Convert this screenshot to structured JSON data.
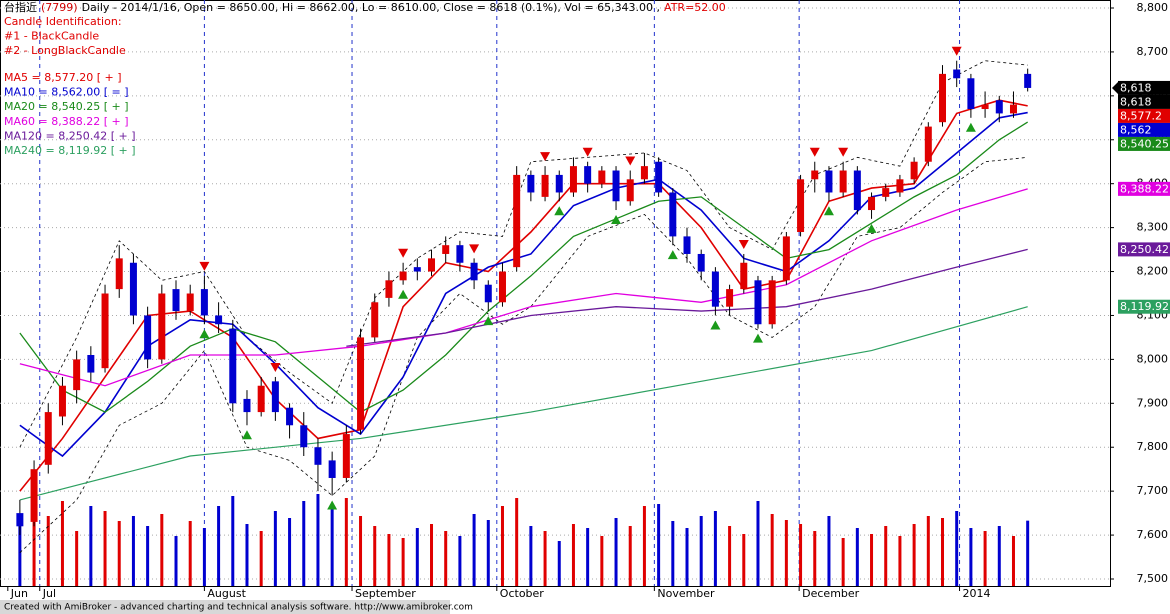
{
  "chart_data": {
    "type": "candlestick",
    "title_parts": [
      {
        "text": "台指近",
        "color": "#000000"
      },
      {
        "text": "(7799)",
        "color": "#d00000"
      },
      {
        "text": "Daily - 2014/1/16, Open = 8650.00, Hi = 8662.00, Lo = 8610.00, Close = 8618 (0.1%), Vol = 65,343.00 ,",
        "color": "#000000"
      },
      {
        "text": "ATR=52.00",
        "color": "#e00000"
      }
    ],
    "annotations": [
      "Candle Identification:",
      "#1 - BlackCandle",
      "#2 - LongBlackCandle"
    ],
    "footer": "Created with AmiBroker - advanced charting and technical analysis software. http://www.amibroker.com",
    "up_color": "#e00000",
    "down_color": "#0000d0",
    "xlim": [
      -1.4,
      76.8
    ],
    "ylim": [
      7500,
      8800
    ],
    "yticks": [
      {
        "value": 7500,
        "label": "7,500"
      },
      {
        "value": 7600,
        "label": "7,600"
      },
      {
        "value": 7700,
        "label": "7,700"
      },
      {
        "value": 7800,
        "label": "7,800"
      },
      {
        "value": 7900,
        "label": "7,900"
      },
      {
        "value": 8000,
        "label": "8,000"
      },
      {
        "value": 8100,
        "label": "8,100"
      },
      {
        "value": 8200,
        "label": "8,200"
      },
      {
        "value": 8300,
        "label": "8,300"
      },
      {
        "value": 8400,
        "label": "8,400"
      },
      {
        "value": 8500,
        "label": "8,500"
      },
      {
        "value": 8600,
        "label": "8,600"
      },
      {
        "value": 8700,
        "label": "8,700"
      },
      {
        "value": 8800,
        "label": "8,800"
      }
    ],
    "month_ticks": [
      {
        "value": -0.85,
        "label": "Jun"
      },
      {
        "value": 1.4,
        "label": "Jul"
      },
      {
        "value": 13.0,
        "label": "August"
      },
      {
        "value": 23.4,
        "label": "September"
      },
      {
        "value": 33.6,
        "label": "October"
      },
      {
        "value": 44.7,
        "label": "November"
      },
      {
        "value": 54.9,
        "label": "December"
      },
      {
        "value": 66.2,
        "label": "2014"
      }
    ],
    "grid": true,
    "ohlc": [
      [
        7650,
        7680,
        7600,
        7620
      ],
      [
        7630,
        7770,
        7620,
        7750
      ],
      [
        7760,
        7900,
        7740,
        7880
      ],
      [
        7870,
        7960,
        7850,
        7940
      ],
      [
        7930,
        8020,
        7900,
        8000
      ],
      [
        8010,
        8030,
        7950,
        7970
      ],
      [
        7980,
        8170,
        7970,
        8150
      ],
      [
        8160,
        8260,
        8140,
        8230
      ],
      [
        8220,
        8240,
        8080,
        8100
      ],
      [
        8100,
        8120,
        7980,
        8000
      ],
      [
        8000,
        8170,
        7990,
        8150
      ],
      [
        8160,
        8180,
        8090,
        8110
      ],
      [
        8110,
        8170,
        8100,
        8150
      ],
      [
        8160,
        8190,
        8080,
        8100
      ],
      [
        8100,
        8130,
        8060,
        8080
      ],
      [
        8070,
        8090,
        7880,
        7900
      ],
      [
        7910,
        7930,
        7850,
        7880
      ],
      [
        7880,
        7960,
        7870,
        7940
      ],
      [
        7950,
        7960,
        7860,
        7880
      ],
      [
        7890,
        7900,
        7820,
        7850
      ],
      [
        7850,
        7880,
        7780,
        7800
      ],
      [
        7800,
        7820,
        7700,
        7760
      ],
      [
        7770,
        7790,
        7690,
        7730
      ],
      [
        7730,
        7850,
        7720,
        7830
      ],
      [
        7840,
        8070,
        7830,
        8050
      ],
      [
        8050,
        8150,
        8040,
        8130
      ],
      [
        8140,
        8200,
        8120,
        8180
      ],
      [
        8180,
        8220,
        8170,
        8200
      ],
      [
        8210,
        8230,
        8180,
        8200
      ],
      [
        8200,
        8250,
        8190,
        8230
      ],
      [
        8240,
        8280,
        8220,
        8260
      ],
      [
        8260,
        8270,
        8200,
        8220
      ],
      [
        8220,
        8230,
        8160,
        8180
      ],
      [
        8170,
        8180,
        8110,
        8130
      ],
      [
        8130,
        8220,
        8120,
        8200
      ],
      [
        8210,
        8440,
        8200,
        8420
      ],
      [
        8420,
        8430,
        8360,
        8380
      ],
      [
        8370,
        8440,
        8360,
        8420
      ],
      [
        8420,
        8430,
        8360,
        8380
      ],
      [
        8380,
        8460,
        8370,
        8440
      ],
      [
        8440,
        8450,
        8380,
        8400
      ],
      [
        8400,
        8440,
        8390,
        8430
      ],
      [
        8430,
        8440,
        8340,
        8360
      ],
      [
        8360,
        8430,
        8350,
        8410
      ],
      [
        8410,
        8470,
        8400,
        8440
      ],
      [
        8450,
        8460,
        8370,
        8380
      ],
      [
        8380,
        8390,
        8260,
        8280
      ],
      [
        8280,
        8300,
        8220,
        8240
      ],
      [
        8240,
        8250,
        8180,
        8200
      ],
      [
        8200,
        8210,
        8100,
        8120
      ],
      [
        8120,
        8170,
        8100,
        8160
      ],
      [
        8160,
        8240,
        8150,
        8220
      ],
      [
        8180,
        8190,
        8070,
        8080
      ],
      [
        8080,
        8190,
        8070,
        8180
      ],
      [
        8180,
        8290,
        8170,
        8280
      ],
      [
        8290,
        8420,
        8280,
        8410
      ],
      [
        8410,
        8450,
        8380,
        8430
      ],
      [
        8430,
        8440,
        8360,
        8380
      ],
      [
        8380,
        8450,
        8370,
        8430
      ],
      [
        8430,
        8440,
        8330,
        8340
      ],
      [
        8340,
        8380,
        8320,
        8370
      ],
      [
        8370,
        8400,
        8360,
        8390
      ],
      [
        8380,
        8420,
        8370,
        8410
      ],
      [
        8410,
        8460,
        8400,
        8450
      ],
      [
        8450,
        8540,
        8440,
        8530
      ],
      [
        8540,
        8670,
        8530,
        8650
      ],
      [
        8660,
        8680,
        8620,
        8640
      ],
      [
        8640,
        8650,
        8550,
        8570
      ],
      [
        8570,
        8610,
        8550,
        8580
      ],
      [
        8590,
        8600,
        8540,
        8560
      ],
      [
        8560,
        8610,
        8550,
        8580
      ],
      [
        8650,
        8662,
        8610,
        8618
      ]
    ],
    "volume_lim": [
      0,
      110000
    ],
    "volume": [
      60000,
      95000,
      70000,
      85000,
      55000,
      80000,
      75000,
      65000,
      70000,
      60000,
      72000,
      50000,
      65000,
      58000,
      80000,
      90000,
      62000,
      55000,
      75000,
      68000,
      85000,
      92000,
      78000,
      88000,
      70000,
      60000,
      52000,
      48000,
      58000,
      62000,
      55000,
      50000,
      72000,
      66000,
      80000,
      88000,
      60000,
      55000,
      45000,
      62000,
      58000,
      50000,
      68000,
      60000,
      80000,
      82000,
      65000,
      58000,
      70000,
      75000,
      60000,
      52000,
      85000,
      72000,
      66000,
      62000,
      55000,
      70000,
      48000,
      58000,
      52000,
      60000,
      50000,
      62000,
      70000,
      68000,
      75000,
      58000,
      55000,
      60000,
      50000,
      65343
    ],
    "series": [
      {
        "name": "MA5 = 8,577.20 [ + ]",
        "color": "#e00000",
        "width": 1.6,
        "x": [
          0,
          3,
          6,
          9,
          12,
          15,
          18,
          21,
          24,
          27,
          30,
          33,
          36,
          39,
          42,
          45,
          48,
          51,
          54,
          57,
          60,
          63,
          66,
          69,
          71
        ],
        "values": [
          7700,
          7820,
          7960,
          8100,
          8110,
          8050,
          7910,
          7820,
          7840,
          8120,
          8220,
          8200,
          8290,
          8400,
          8400,
          8400,
          8300,
          8160,
          8180,
          8360,
          8390,
          8400,
          8560,
          8590,
          8577.2
        ]
      },
      {
        "name": "MA10 = 8,562.00 [ = ]",
        "color": "#0000d0",
        "width": 1.6,
        "x": [
          0,
          3,
          6,
          9,
          12,
          15,
          18,
          21,
          24,
          27,
          30,
          33,
          36,
          39,
          42,
          45,
          48,
          51,
          54,
          57,
          60,
          63,
          66,
          69,
          71
        ],
        "values": [
          7850,
          7780,
          7880,
          8030,
          8090,
          8080,
          7990,
          7890,
          7830,
          7960,
          8150,
          8210,
          8240,
          8350,
          8390,
          8410,
          8340,
          8230,
          8200,
          8270,
          8370,
          8390,
          8470,
          8550,
          8562
        ]
      },
      {
        "name": "MA20 = 8,540.25 [ + ]",
        "color": "#1a8a1a",
        "width": 1.3,
        "x": [
          0,
          3,
          6,
          9,
          12,
          15,
          18,
          21,
          24,
          27,
          30,
          33,
          36,
          39,
          42,
          45,
          48,
          51,
          54,
          57,
          60,
          63,
          66,
          69,
          71
        ],
        "values": [
          8060,
          7930,
          7880,
          7950,
          8030,
          8070,
          8040,
          7960,
          7880,
          7930,
          8010,
          8110,
          8190,
          8280,
          8320,
          8360,
          8370,
          8300,
          8230,
          8250,
          8310,
          8370,
          8420,
          8500,
          8540.25
        ]
      },
      {
        "name": "MA60 = 8,388.22 [ + ]",
        "color": "#e000e0",
        "width": 1.3,
        "x": [
          0,
          6,
          12,
          18,
          24,
          30,
          36,
          42,
          48,
          54,
          60,
          66,
          71
        ],
        "values": [
          7990,
          7940,
          8010,
          8010,
          8030,
          8060,
          8120,
          8150,
          8130,
          8170,
          8270,
          8340,
          8388.22
        ]
      },
      {
        "name": "MA120 = 8,250.42 [ + ]",
        "color": "#6a1a9a",
        "width": 1.3,
        "x": [
          23,
          30,
          36,
          42,
          48,
          54,
          60,
          66,
          71
        ],
        "values": [
          8030,
          8060,
          8100,
          8120,
          8110,
          8120,
          8160,
          8210,
          8250.42
        ]
      },
      {
        "name": "MA240 = 8,119.92 [ + ]",
        "color": "#2ca060",
        "width": 1.2,
        "x": [
          0,
          12,
          24,
          36,
          48,
          60,
          71
        ],
        "values": [
          7680,
          7780,
          7820,
          7880,
          7950,
          8020,
          8119.92
        ]
      }
    ],
    "bands": [
      {
        "color": "#000000",
        "x": [
          0,
          4,
          7,
          10,
          13,
          16,
          19,
          22,
          25,
          28,
          31,
          34,
          36,
          40,
          44,
          47,
          50,
          53,
          56,
          59,
          62,
          65,
          68,
          71
        ],
        "values": [
          7800,
          8050,
          8270,
          8180,
          8200,
          8050,
          7970,
          7900,
          8140,
          8230,
          8290,
          8280,
          8450,
          8460,
          8470,
          8430,
          8300,
          8250,
          8420,
          8460,
          8440,
          8630,
          8680,
          8670
        ]
      },
      {
        "color": "#000000",
        "x": [
          0,
          4,
          7,
          10,
          13,
          16,
          19,
          22,
          25,
          28,
          31,
          34,
          36,
          40,
          44,
          47,
          50,
          53,
          56,
          59,
          62,
          65,
          68,
          71
        ],
        "values": [
          7560,
          7680,
          7850,
          7900,
          8020,
          7800,
          7770,
          7690,
          7780,
          8050,
          8150,
          8080,
          8120,
          8280,
          8330,
          8230,
          8100,
          8050,
          8120,
          8280,
          8300,
          8380,
          8450,
          8460
        ]
      }
    ],
    "sell_signals": [
      13,
      18,
      27,
      32,
      37,
      40,
      43,
      51,
      56,
      58,
      66
    ],
    "buy_signals": [
      13,
      16,
      22,
      27,
      33,
      38,
      42,
      46,
      49,
      52,
      57,
      60,
      67
    ],
    "sell_color": "#e00000",
    "buy_color": "#1a9a1a",
    "price_tags": [
      {
        "value": 8618,
        "label": "8,618",
        "color": "#000000"
      },
      {
        "value": 8618,
        "label": "8,618",
        "color": "#000000"
      },
      {
        "value": 8577.2,
        "label": "8,577.2",
        "color": "#e00000"
      },
      {
        "value": 8562,
        "label": "8,562",
        "color": "#0000d0"
      },
      {
        "value": 8540.25,
        "label": "8,540.25",
        "color": "#1a8a1a"
      },
      {
        "value": 8388.22,
        "label": "8,388.22",
        "color": "#e000e0"
      },
      {
        "value": 8250.42,
        "label": "8,250.42",
        "color": "#6a1a9a"
      },
      {
        "value": 8119.92,
        "label": "8,119.92",
        "color": "#2ca060"
      }
    ]
  }
}
